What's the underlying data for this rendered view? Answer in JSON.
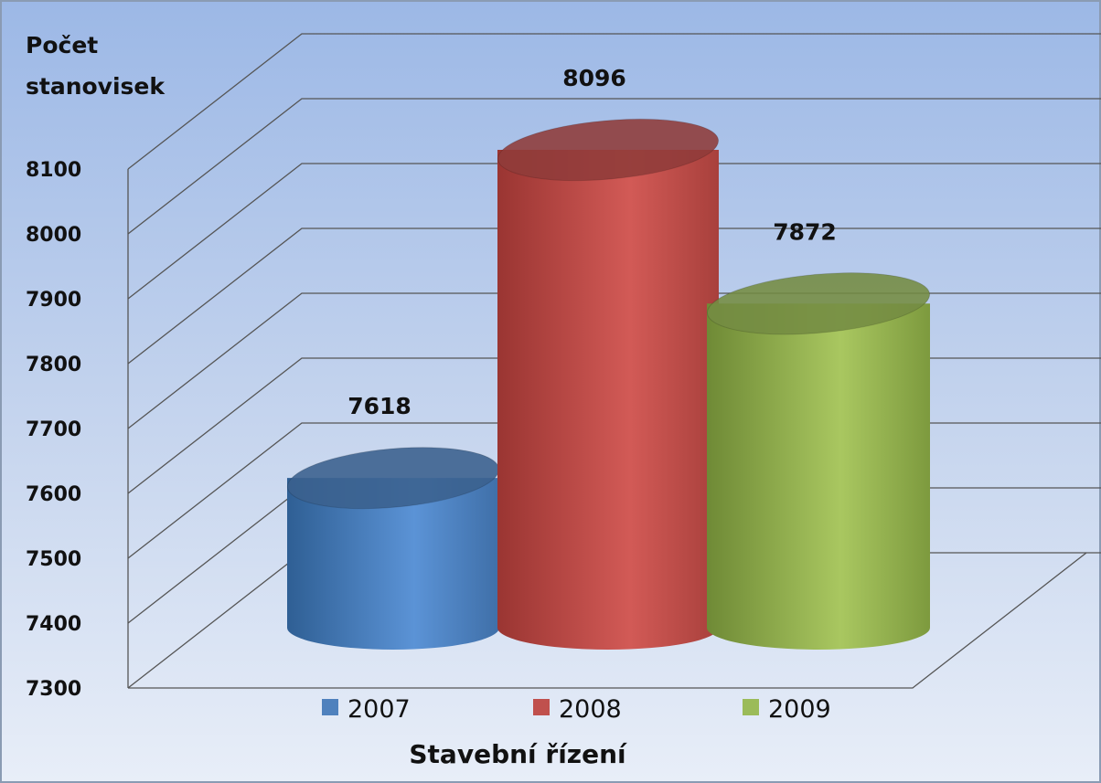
{
  "chart_data": {
    "type": "bar",
    "style": "3d-cylinder",
    "title": "",
    "ylabel_lines": [
      "Počet",
      "stanovisek"
    ],
    "xlabel": "Stavební řízení",
    "ylim": [
      7300,
      8100
    ],
    "yticks": [
      7300,
      7400,
      7500,
      7600,
      7700,
      7800,
      7900,
      8000,
      8100
    ],
    "grid": true,
    "legend_position": "bottom",
    "series": [
      {
        "name": "2007",
        "values": [
          7618
        ],
        "color": "#4f81bd"
      },
      {
        "name": "2008",
        "values": [
          8096
        ],
        "color": "#c0504d"
      },
      {
        "name": "2009",
        "values": [
          7872
        ],
        "color": "#9bbb59"
      }
    ],
    "data_labels": [
      "7618",
      "8096",
      "7872"
    ]
  }
}
